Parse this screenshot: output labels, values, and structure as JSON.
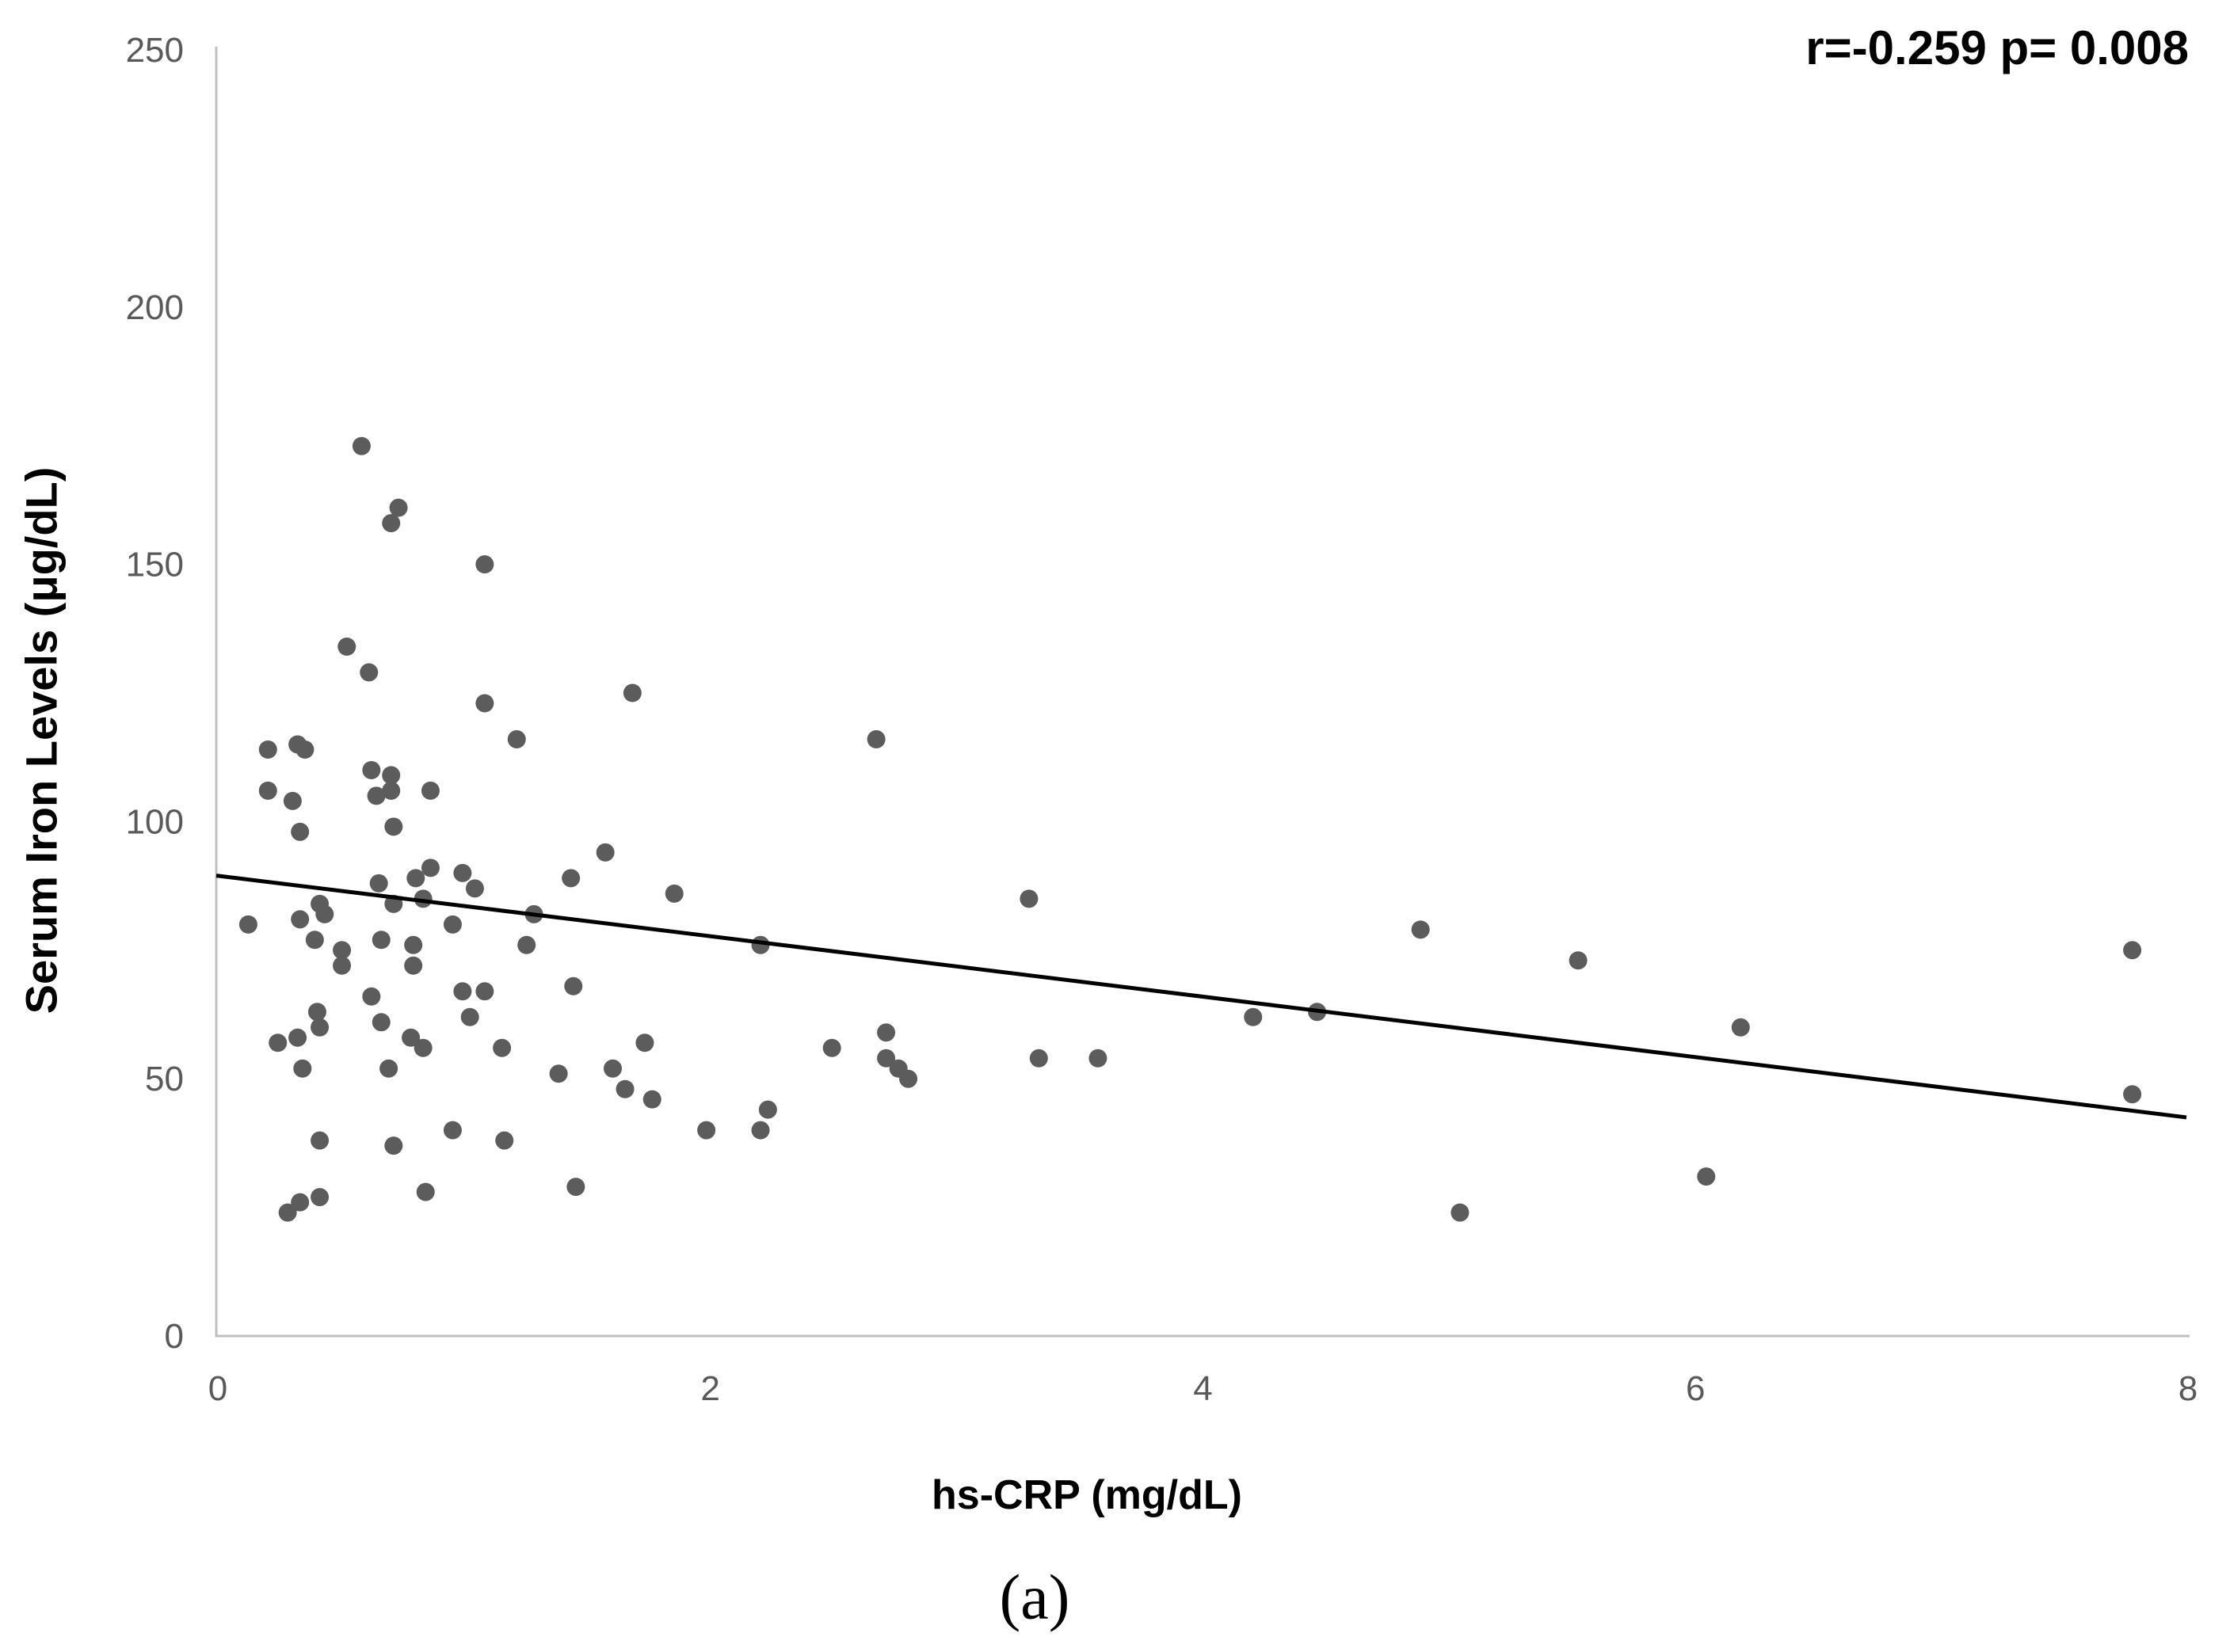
{
  "chart_data": {
    "type": "scatter",
    "title": "",
    "annotation": "r=-0.259 p= 0.008",
    "correlation_r": -0.259,
    "p_value": 0.008,
    "xlabel": "hs-CRP (mg/dL)",
    "ylabel": "Serum Iron Levels (μg/dL)",
    "caption": "(a)",
    "xlim": [
      0,
      8
    ],
    "ylim": [
      0,
      250
    ],
    "xticks": [
      0,
      2,
      4,
      6,
      8
    ],
    "yticks": [
      0,
      50,
      100,
      150,
      200,
      250
    ],
    "grid": false,
    "legend": "none",
    "trendline": {
      "x_start": 0,
      "y_start": 89.5,
      "x_end": 8,
      "y_end": 42.5
    },
    "points": [
      [
        0.59,
        173
      ],
      [
        0.74,
        161
      ],
      [
        0.71,
        158
      ],
      [
        1.09,
        150
      ],
      [
        0.53,
        134
      ],
      [
        0.62,
        129
      ],
      [
        1.09,
        123
      ],
      [
        1.22,
        116
      ],
      [
        1.69,
        125
      ],
      [
        2.68,
        116
      ],
      [
        0.21,
        114
      ],
      [
        0.33,
        115
      ],
      [
        0.36,
        114
      ],
      [
        0.63,
        110
      ],
      [
        0.71,
        109
      ],
      [
        0.71,
        106
      ],
      [
        0.65,
        105
      ],
      [
        0.21,
        106
      ],
      [
        0.31,
        104
      ],
      [
        0.87,
        106
      ],
      [
        0.34,
        98
      ],
      [
        0.72,
        99
      ],
      [
        1.58,
        94
      ],
      [
        0.66,
        88
      ],
      [
        0.81,
        89
      ],
      [
        0.87,
        91
      ],
      [
        1.0,
        90
      ],
      [
        1.05,
        87
      ],
      [
        0.84,
        85
      ],
      [
        1.44,
        89
      ],
      [
        1.86,
        86
      ],
      [
        3.3,
        85
      ],
      [
        0.42,
        84
      ],
      [
        0.44,
        82
      ],
      [
        0.34,
        81
      ],
      [
        0.13,
        80
      ],
      [
        0.72,
        84
      ],
      [
        1.29,
        82
      ],
      [
        0.96,
        80
      ],
      [
        4.89,
        79
      ],
      [
        0.4,
        77
      ],
      [
        0.67,
        77
      ],
      [
        0.8,
        76
      ],
      [
        1.26,
        76
      ],
      [
        0.51,
        75
      ],
      [
        0.51,
        72
      ],
      [
        0.8,
        72
      ],
      [
        2.21,
        76
      ],
      [
        5.53,
        73
      ],
      [
        7.78,
        75
      ],
      [
        1.45,
        68
      ],
      [
        0.63,
        66
      ],
      [
        1.0,
        67
      ],
      [
        1.09,
        67
      ],
      [
        1.03,
        62
      ],
      [
        0.67,
        61
      ],
      [
        0.41,
        63
      ],
      [
        0.42,
        60
      ],
      [
        4.21,
        62
      ],
      [
        4.47,
        63
      ],
      [
        6.19,
        60
      ],
      [
        0.25,
        57
      ],
      [
        0.33,
        58
      ],
      [
        0.79,
        58
      ],
      [
        0.84,
        56
      ],
      [
        1.16,
        56
      ],
      [
        1.74,
        57
      ],
      [
        2.5,
        56
      ],
      [
        2.72,
        59
      ],
      [
        0.35,
        52
      ],
      [
        0.7,
        52
      ],
      [
        1.39,
        51
      ],
      [
        1.61,
        52
      ],
      [
        2.72,
        54
      ],
      [
        2.77,
        52
      ],
      [
        3.34,
        54
      ],
      [
        3.58,
        54
      ],
      [
        2.81,
        50
      ],
      [
        1.66,
        48
      ],
      [
        1.77,
        46
      ],
      [
        2.24,
        44
      ],
      [
        7.78,
        47
      ],
      [
        0.42,
        38
      ],
      [
        0.96,
        40
      ],
      [
        0.72,
        37
      ],
      [
        1.17,
        38
      ],
      [
        1.99,
        40
      ],
      [
        2.21,
        40
      ],
      [
        0.85,
        28
      ],
      [
        1.46,
        29
      ],
      [
        0.42,
        27
      ],
      [
        0.34,
        26
      ],
      [
        0.29,
        24
      ],
      [
        5.05,
        24
      ],
      [
        6.05,
        31
      ]
    ],
    "colors": {
      "point": "#5c5c5c",
      "axis": "#bfbfbf",
      "tick_label": "#595959",
      "trend": "#000000",
      "text": "#000000"
    }
  }
}
